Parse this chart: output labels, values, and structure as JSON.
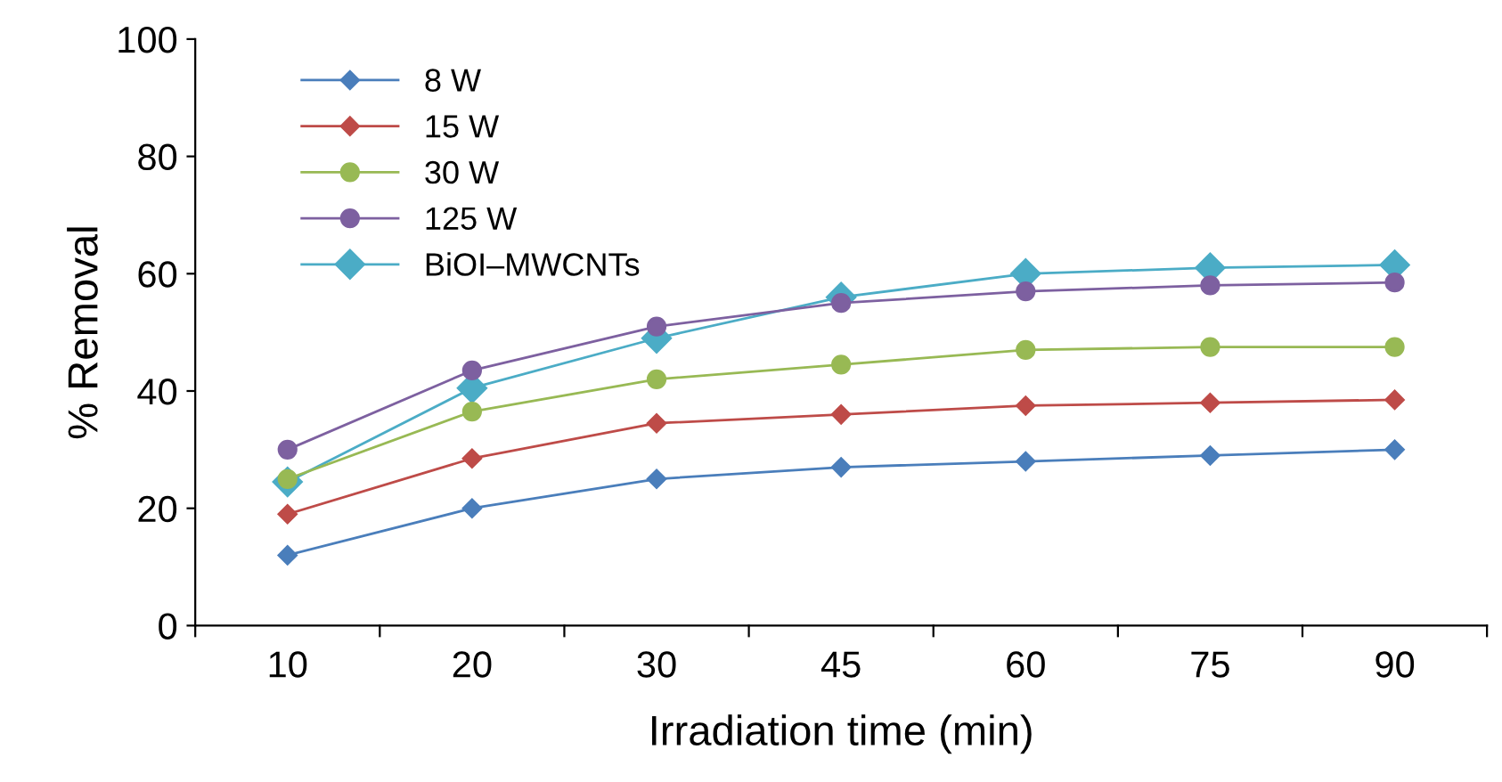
{
  "chart_data": {
    "type": "line",
    "xlabel": "Irradiation time (min)",
    "ylabel": "% Removal",
    "categories": [
      "10",
      "20",
      "30",
      "45",
      "60",
      "75",
      "90"
    ],
    "series": [
      {
        "name": "8 W",
        "color": "#4a7ebb",
        "marker": "diamond",
        "values": [
          12,
          20,
          25,
          27,
          28,
          29,
          30
        ]
      },
      {
        "name": "15 W",
        "color": "#be4b48",
        "marker": "diamond",
        "values": [
          19,
          28.5,
          34.5,
          36,
          37.5,
          38,
          38.5
        ]
      },
      {
        "name": "30 W",
        "color": "#98b954",
        "marker": "circle",
        "values": [
          25,
          36.5,
          42,
          44.5,
          47,
          47.5,
          47.5
        ]
      },
      {
        "name": "125 W",
        "color": "#7d60a0",
        "marker": "circle",
        "values": [
          30,
          43.5,
          51,
          55,
          57,
          58,
          58.5
        ]
      },
      {
        "name": "BiOI–MWCNTs",
        "color": "#4bacc6",
        "marker": "diamond",
        "values": [
          24.5,
          40.5,
          49,
          56,
          60,
          61,
          61.5
        ]
      }
    ],
    "ylim": [
      0,
      100
    ],
    "yticks": [
      0,
      20,
      40,
      60,
      80,
      100
    ],
    "grid": false,
    "legend": "top left"
  }
}
